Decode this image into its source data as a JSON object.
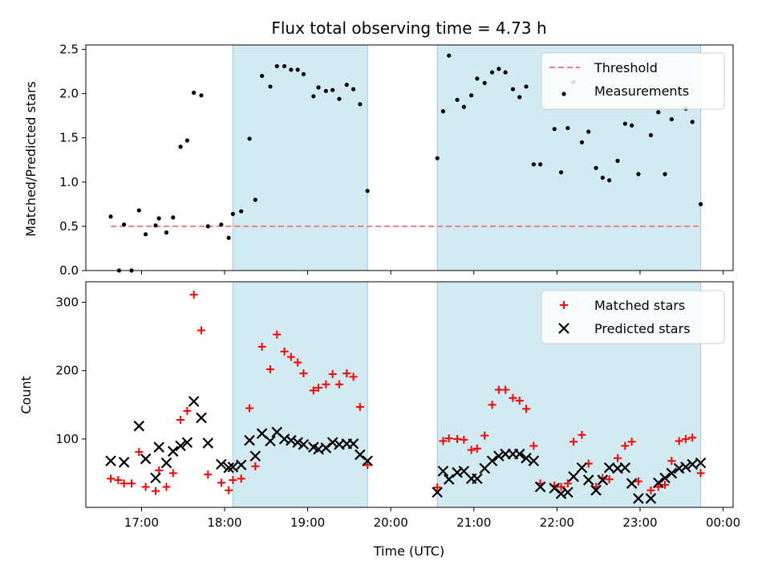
{
  "figure": {
    "title": "Flux total observing time = 4.73 h",
    "xlabel": "Time (UTC)",
    "x_ticks": [
      "17:00",
      "18:00",
      "19:00",
      "20:00",
      "21:00",
      "22:00",
      "23:00",
      "00:00"
    ]
  },
  "chart_data": [
    {
      "type": "scatter",
      "ylabel": "Matched/Predicted stars",
      "ylim": [
        0,
        2.55
      ],
      "y_ticks": [
        "0.0",
        "0.5",
        "1.0",
        "1.5",
        "2.0",
        "2.5"
      ],
      "x_unit": "hours UTC (24 = 00:00 next day)",
      "xlim": [
        16.33,
        24.12
      ],
      "shaded_intervals": [
        [
          18.1,
          19.72
        ],
        [
          20.56,
          23.73
        ]
      ],
      "shade_color": "#add8e6",
      "legend": {
        "position": "top-right",
        "entries": [
          "Threshold",
          "Measurements"
        ]
      },
      "series": [
        {
          "name": "Threshold",
          "kind": "dashed-line",
          "color": "#f08080",
          "x": [
            16.63,
            23.73
          ],
          "y": [
            0.5,
            0.5
          ]
        },
        {
          "name": "Measurements",
          "kind": "points",
          "color": "#000000",
          "x": [
            16.63,
            16.73,
            16.79,
            16.88,
            16.97,
            17.05,
            17.17,
            17.21,
            17.3,
            17.38,
            17.47,
            17.55,
            17.63,
            17.72,
            17.8,
            17.96,
            18.05,
            18.1,
            18.2,
            18.3,
            18.37,
            18.45,
            18.55,
            18.63,
            18.72,
            18.8,
            18.88,
            18.95,
            19.07,
            19.13,
            19.22,
            19.3,
            19.38,
            19.47,
            19.55,
            19.63,
            19.72,
            20.56,
            20.63,
            20.7,
            20.8,
            20.88,
            20.97,
            21.04,
            21.13,
            21.22,
            21.3,
            21.38,
            21.47,
            21.55,
            21.63,
            21.72,
            21.8,
            21.97,
            22.05,
            22.13,
            22.2,
            22.3,
            22.38,
            22.47,
            22.55,
            22.63,
            22.73,
            22.82,
            22.9,
            22.98,
            23.13,
            23.22,
            23.3,
            23.38,
            23.47,
            23.55,
            23.63,
            23.73
          ],
          "y": [
            0.61,
            0.0,
            0.52,
            0.0,
            0.68,
            0.41,
            0.51,
            0.59,
            0.43,
            0.6,
            1.4,
            1.47,
            2.01,
            1.98,
            0.5,
            0.52,
            0.37,
            0.64,
            0.67,
            1.49,
            0.8,
            2.2,
            2.08,
            2.31,
            2.31,
            2.27,
            2.27,
            2.22,
            1.97,
            2.07,
            2.03,
            2.04,
            1.94,
            2.1,
            2.05,
            1.88,
            0.9,
            1.27,
            1.8,
            2.43,
            1.93,
            1.85,
            1.98,
            2.17,
            2.12,
            2.24,
            2.28,
            2.24,
            2.05,
            1.96,
            2.08,
            1.2,
            1.2,
            1.6,
            1.11,
            1.61,
            2.13,
            1.45,
            1.57,
            1.16,
            1.05,
            1.02,
            1.24,
            1.66,
            1.64,
            1.09,
            1.53,
            1.79,
            1.09,
            1.71,
            2.02,
            1.83,
            1.68,
            0.75
          ]
        }
      ]
    },
    {
      "type": "scatter",
      "ylabel": "Count",
      "ylim": [
        0,
        330
      ],
      "y_ticks": [
        "100",
        "200",
        "300"
      ],
      "x_unit": "hours UTC (24 = 00:00 next day)",
      "xlim": [
        16.33,
        24.12
      ],
      "shaded_intervals": [
        [
          18.1,
          19.72
        ],
        [
          20.56,
          23.73
        ]
      ],
      "shade_color": "#add8e6",
      "legend": {
        "position": "top-right",
        "entries": [
          "Matched stars",
          "Predicted stars"
        ]
      },
      "series": [
        {
          "name": "Matched stars",
          "kind": "plus",
          "color": "#ff0000",
          "x": [
            16.63,
            16.72,
            16.79,
            16.88,
            16.97,
            17.05,
            17.17,
            17.21,
            17.3,
            17.38,
            17.47,
            17.55,
            17.63,
            17.72,
            17.8,
            17.96,
            18.05,
            18.1,
            18.2,
            18.3,
            18.37,
            18.45,
            18.55,
            18.63,
            18.72,
            18.8,
            18.88,
            18.95,
            19.07,
            19.13,
            19.22,
            19.3,
            19.38,
            19.47,
            19.55,
            19.63,
            19.72,
            20.56,
            20.63,
            20.7,
            20.8,
            20.88,
            20.97,
            21.04,
            21.13,
            21.22,
            21.3,
            21.38,
            21.47,
            21.55,
            21.63,
            21.72,
            21.8,
            21.97,
            22.05,
            22.13,
            22.2,
            22.3,
            22.38,
            22.47,
            22.55,
            22.63,
            22.73,
            22.82,
            22.9,
            22.98,
            23.13,
            23.22,
            23.3,
            23.38,
            23.47,
            23.55,
            23.63,
            23.73
          ],
          "y": [
            42,
            40,
            35,
            35,
            81,
            30,
            24,
            54,
            30,
            50,
            128,
            141,
            311,
            259,
            48,
            36,
            25,
            40,
            42,
            145,
            60,
            235,
            202,
            253,
            228,
            220,
            212,
            196,
            171,
            175,
            180,
            195,
            180,
            196,
            191,
            147,
            62,
            29,
            97,
            101,
            100,
            99,
            84,
            86,
            105,
            150,
            172,
            172,
            160,
            156,
            144,
            90,
            35,
            32,
            30,
            35,
            96,
            106,
            64,
            30,
            43,
            41,
            72,
            90,
            96,
            38,
            25,
            30,
            33,
            68,
            97,
            100,
            102,
            50
          ]
        },
        {
          "name": "Predicted stars",
          "kind": "cross",
          "color": "#000000",
          "x": [
            16.63,
            16.79,
            16.97,
            17.05,
            17.17,
            17.21,
            17.3,
            17.38,
            17.47,
            17.55,
            17.63,
            17.72,
            17.8,
            17.96,
            18.05,
            18.1,
            18.2,
            18.3,
            18.37,
            18.45,
            18.55,
            18.63,
            18.72,
            18.8,
            18.88,
            18.95,
            19.07,
            19.13,
            19.22,
            19.3,
            19.38,
            19.47,
            19.55,
            19.63,
            19.72,
            20.56,
            20.63,
            20.7,
            20.8,
            20.88,
            20.97,
            21.04,
            21.13,
            21.22,
            21.3,
            21.38,
            21.47,
            21.55,
            21.63,
            21.72,
            21.8,
            21.97,
            22.05,
            22.13,
            22.2,
            22.3,
            22.38,
            22.47,
            22.55,
            22.63,
            22.73,
            22.82,
            22.9,
            22.98,
            23.13,
            23.22,
            23.3,
            23.38,
            23.47,
            23.55,
            23.63,
            23.73
          ],
          "y": [
            68,
            66,
            119,
            71,
            43,
            88,
            65,
            82,
            90,
            95,
            155,
            131,
            94,
            63,
            58,
            59,
            62,
            98,
            75,
            108,
            97,
            110,
            100,
            98,
            95,
            92,
            88,
            85,
            87,
            95,
            92,
            93,
            93,
            77,
            68,
            22,
            53,
            41,
            51,
            53,
            42,
            42,
            57,
            68,
            75,
            78,
            78,
            78,
            72,
            68,
            30,
            28,
            20,
            22,
            45,
            58,
            40,
            25,
            40,
            58,
            57,
            58,
            35,
            13,
            13,
            36,
            43,
            50,
            57,
            59,
            63,
            65
          ]
        }
      ]
    }
  ]
}
